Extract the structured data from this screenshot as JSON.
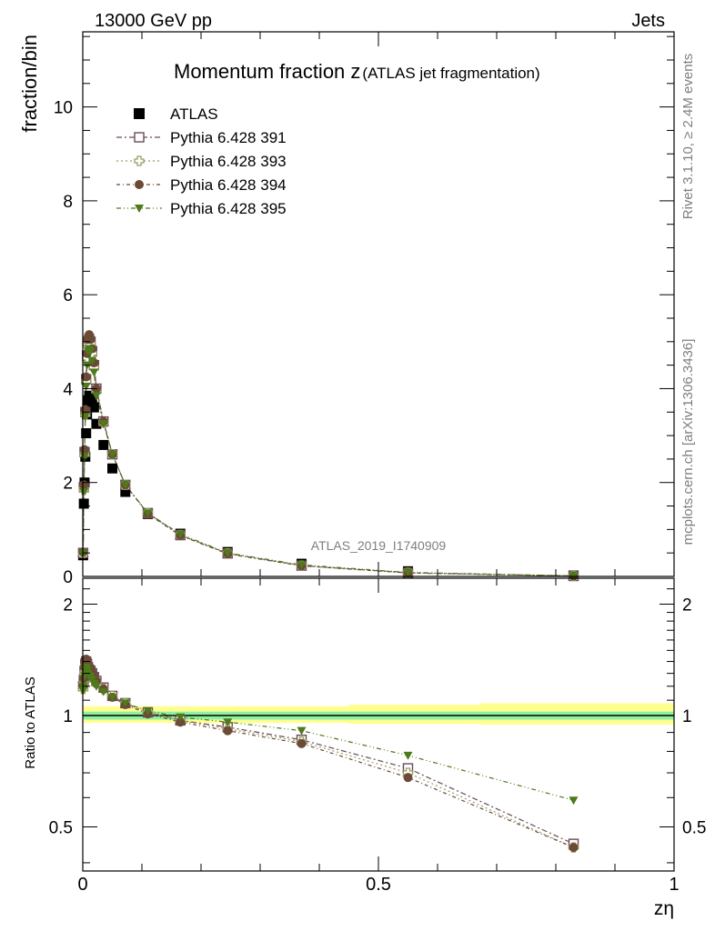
{
  "header": {
    "energy_label": "13000 GeV pp",
    "category_label": "Jets",
    "plot_title_main": "Momentum fraction z",
    "plot_title_sub": "(ATLAS jet fragmentation)",
    "right_label_top": "Rivet 3.1.10, ≥ 2.4M events",
    "right_label_bottom": "mcplots.cern.ch [arXiv:1306.3436]",
    "analysis_id": "ATLAS_2019_I1740909"
  },
  "axes": {
    "main_ylabel": "fraction/bin",
    "ratio_ylabel": "Ratio to ATLAS",
    "xlabel": "zη",
    "main_yticks": [
      "0",
      "2",
      "4",
      "6",
      "8",
      "10"
    ],
    "ratio_yticks": [
      "0.5",
      "1",
      "2"
    ],
    "xticks": [
      "0",
      "0.5",
      "1"
    ]
  },
  "colors": {
    "atlas": "#000000",
    "p391": "#6b4a5a",
    "p393": "#9c9c60",
    "p394": "#6b4a36",
    "p395": "#4d7a1a",
    "band_inner": "#90f0a0",
    "band_outer": "#ffff90"
  },
  "chart_data": [
    {
      "type": "scatter",
      "panel": "main",
      "title": "Momentum fraction z(ATLAS jet fragmentation)",
      "xlabel": "zη",
      "ylabel": "fraction/bin",
      "xlim": [
        0,
        1
      ],
      "ylim": [
        0,
        11.6
      ],
      "legend_position": "top-left",
      "x": [
        0.0006,
        0.0018,
        0.003,
        0.0043,
        0.0057,
        0.0072,
        0.0089,
        0.0108,
        0.0131,
        0.0158,
        0.019,
        0.023,
        0.035,
        0.05,
        0.072,
        0.11,
        0.165,
        0.245,
        0.37,
        0.55,
        0.83
      ],
      "series": [
        {
          "name": "ATLAS",
          "marker": "square-filled",
          "values": [
            0.45,
            1.55,
            2.0,
            2.55,
            3.05,
            3.45,
            3.75,
            3.85,
            3.8,
            3.7,
            3.6,
            3.25,
            2.8,
            2.3,
            1.8,
            1.33,
            0.91,
            0.52,
            0.27,
            0.11,
            0.02
          ]
        },
        {
          "name": "Pythia 6.428 391",
          "marker": "square-open",
          "values": [
            0.5,
            1.9,
            2.65,
            3.5,
            4.2,
            4.7,
            5.0,
            5.05,
            5.0,
            4.8,
            4.5,
            4.0,
            3.3,
            2.6,
            1.95,
            1.35,
            0.88,
            0.49,
            0.23,
            0.077,
            0.009
          ]
        },
        {
          "name": "Pythia 6.428 393",
          "marker": "cross-open",
          "values": [
            0.5,
            1.85,
            2.6,
            3.45,
            4.15,
            4.65,
            4.95,
            5.0,
            4.95,
            4.75,
            4.45,
            3.95,
            3.28,
            2.6,
            1.95,
            1.35,
            0.88,
            0.49,
            0.23,
            0.077,
            0.009
          ]
        },
        {
          "name": "Pythia 6.428 394",
          "marker": "circle-filled",
          "values": [
            0.52,
            1.95,
            2.7,
            3.55,
            4.25,
            4.75,
            5.05,
            5.15,
            5.05,
            4.85,
            4.55,
            4.0,
            3.3,
            2.6,
            1.95,
            1.33,
            0.87,
            0.48,
            0.225,
            0.074,
            0.009
          ]
        },
        {
          "name": "Pythia 6.428 395",
          "marker": "triangle-down-filled",
          "values": [
            0.5,
            1.8,
            2.55,
            3.4,
            4.05,
            4.5,
            4.8,
            4.85,
            4.8,
            4.6,
            4.35,
            3.85,
            3.25,
            2.6,
            1.95,
            1.35,
            0.9,
            0.5,
            0.245,
            0.085,
            0.012
          ]
        }
      ]
    },
    {
      "type": "scatter",
      "panel": "ratio",
      "xlabel": "zη",
      "ylabel": "Ratio to ATLAS",
      "xlim": [
        0,
        1
      ],
      "ylim": [
        0.38,
        2.35
      ],
      "y_scale": "log",
      "x": [
        0.0006,
        0.0018,
        0.003,
        0.0043,
        0.0057,
        0.0072,
        0.0089,
        0.0108,
        0.0131,
        0.0158,
        0.019,
        0.023,
        0.035,
        0.05,
        0.072,
        0.11,
        0.165,
        0.245,
        0.37,
        0.55,
        0.83
      ],
      "series": [
        {
          "name": "Pythia 6.428 391",
          "values": [
            1.2,
            1.25,
            1.32,
            1.38,
            1.4,
            1.38,
            1.35,
            1.33,
            1.32,
            1.3,
            1.27,
            1.24,
            1.19,
            1.13,
            1.08,
            1.02,
            0.97,
            0.93,
            0.86,
            0.72,
            0.45
          ]
        },
        {
          "name": "Pythia 6.428 393",
          "values": [
            1.18,
            1.22,
            1.3,
            1.36,
            1.38,
            1.36,
            1.33,
            1.32,
            1.3,
            1.28,
            1.25,
            1.23,
            1.18,
            1.13,
            1.08,
            1.02,
            0.97,
            0.92,
            0.85,
            0.7,
            0.44
          ]
        },
        {
          "name": "Pythia 6.428 394",
          "values": [
            1.2,
            1.26,
            1.35,
            1.4,
            1.42,
            1.4,
            1.37,
            1.35,
            1.34,
            1.31,
            1.28,
            1.24,
            1.18,
            1.12,
            1.07,
            1.01,
            0.96,
            0.91,
            0.84,
            0.68,
            0.44
          ]
        },
        {
          "name": "Pythia 6.428 395",
          "values": [
            1.17,
            1.2,
            1.28,
            1.33,
            1.35,
            1.33,
            1.3,
            1.28,
            1.27,
            1.25,
            1.22,
            1.2,
            1.16,
            1.12,
            1.08,
            1.03,
            0.99,
            0.96,
            0.91,
            0.78,
            0.59
          ]
        }
      ],
      "band_inner": [
        {
          "x0": 0,
          "x1": 0.45,
          "lo": 0.975,
          "hi": 1.025
        },
        {
          "x0": 0.45,
          "x1": 0.67,
          "lo": 0.975,
          "hi": 1.025
        },
        {
          "x0": 0.67,
          "x1": 1.0,
          "lo": 0.975,
          "hi": 1.025
        }
      ],
      "band_outer": [
        {
          "x0": 0,
          "x1": 0.45,
          "lo": 0.955,
          "hi": 1.06
        },
        {
          "x0": 0.45,
          "x1": 0.67,
          "lo": 0.95,
          "hi": 1.07
        },
        {
          "x0": 0.67,
          "x1": 1.0,
          "lo": 0.945,
          "hi": 1.08
        }
      ]
    }
  ]
}
